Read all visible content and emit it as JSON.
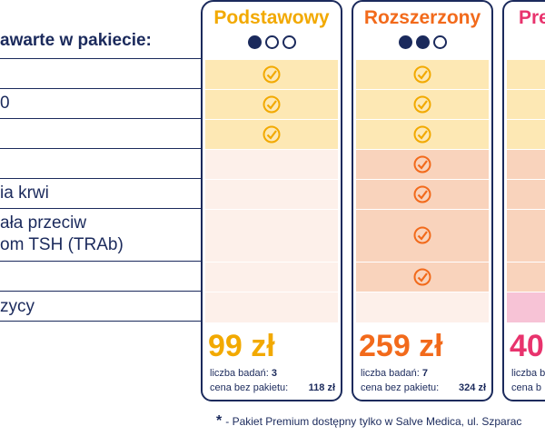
{
  "header_label": "awarte w pakiecie:",
  "row_labels": [
    "",
    "0",
    "",
    "",
    "ia krwi",
    "ała przeciw\nom TSH (TRAb)",
    "",
    "zycy"
  ],
  "packages": [
    {
      "name": "Podstawowy",
      "title_color": "#f2a900",
      "dots_filled": 1,
      "dots_total": 3,
      "price": "99 zł",
      "tests_label": "liczba badań:",
      "tests_count": "3",
      "no_package_label": "cena bez pakietu:",
      "no_package_price": "118 zł"
    },
    {
      "name": "Rozszerzony",
      "title_color": "#f26a1b",
      "dots_filled": 2,
      "dots_total": 3,
      "price": "259 zł",
      "tests_label": "liczba badań:",
      "tests_count": "7",
      "no_package_label": "cena bez pakietu:",
      "no_package_price": "324 zł"
    },
    {
      "name": "Pre",
      "title_color": "#e8336d",
      "price": "40",
      "tests_label": "liczba b",
      "no_package_label": "cena b"
    }
  ],
  "footnote": {
    "star": "*",
    "text": "- Pakiet Premium dostępny tylko w Salve Medica, ul. Szparac"
  }
}
